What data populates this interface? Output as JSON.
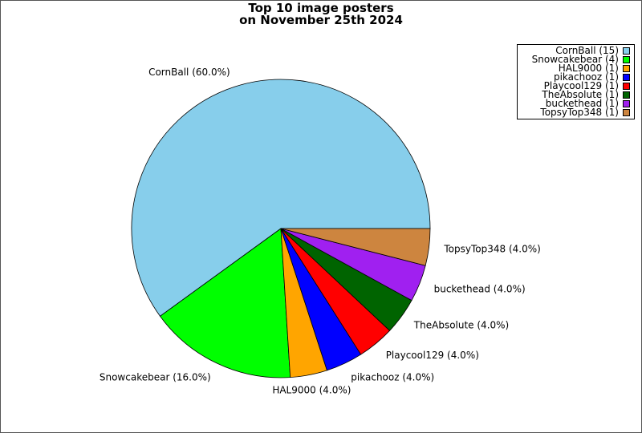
{
  "chart_data": {
    "type": "pie",
    "title_line1": "Top 10 image posters",
    "title_line2": "on November 25th 2024",
    "slices": [
      {
        "name": "CornBall",
        "count": 15,
        "percent": 60.0,
        "color": "#87CEEB",
        "legend_text": "CornBall (15)",
        "label_text": "CornBall (60.0%)"
      },
      {
        "name": "Snowcakebear",
        "count": 4,
        "percent": 16.0,
        "color": "#00FF00",
        "legend_text": "Snowcakebear (4)",
        "label_text": "Snowcakebear (16.0%)"
      },
      {
        "name": "HAL9000",
        "count": 1,
        "percent": 4.0,
        "color": "#FFA500",
        "legend_text": "HAL9000 (1)",
        "label_text": "HAL9000 (4.0%)"
      },
      {
        "name": "pikachooz",
        "count": 1,
        "percent": 4.0,
        "color": "#0000FF",
        "legend_text": "pikachooz (1)",
        "label_text": "pikachooz (4.0%)"
      },
      {
        "name": "Playcool129",
        "count": 1,
        "percent": 4.0,
        "color": "#FF0000",
        "legend_text": "Playcool129 (1)",
        "label_text": "Playcool129 (4.0%)"
      },
      {
        "name": "TheAbsolute",
        "count": 1,
        "percent": 4.0,
        "color": "#006400",
        "legend_text": "TheAbsolute (1)",
        "label_text": "TheAbsolute (4.0%)"
      },
      {
        "name": "buckethead",
        "count": 1,
        "percent": 4.0,
        "color": "#A020F0",
        "legend_text": "buckethead (1)",
        "label_text": "buckethead (4.0%)"
      },
      {
        "name": "TopsyTop348",
        "count": 1,
        "percent": 4.0,
        "color": "#CD853F",
        "legend_text": "TopsyTop348 (1)",
        "label_text": "TopsyTop348 (4.0%)"
      }
    ],
    "legend_position": "top-right"
  }
}
